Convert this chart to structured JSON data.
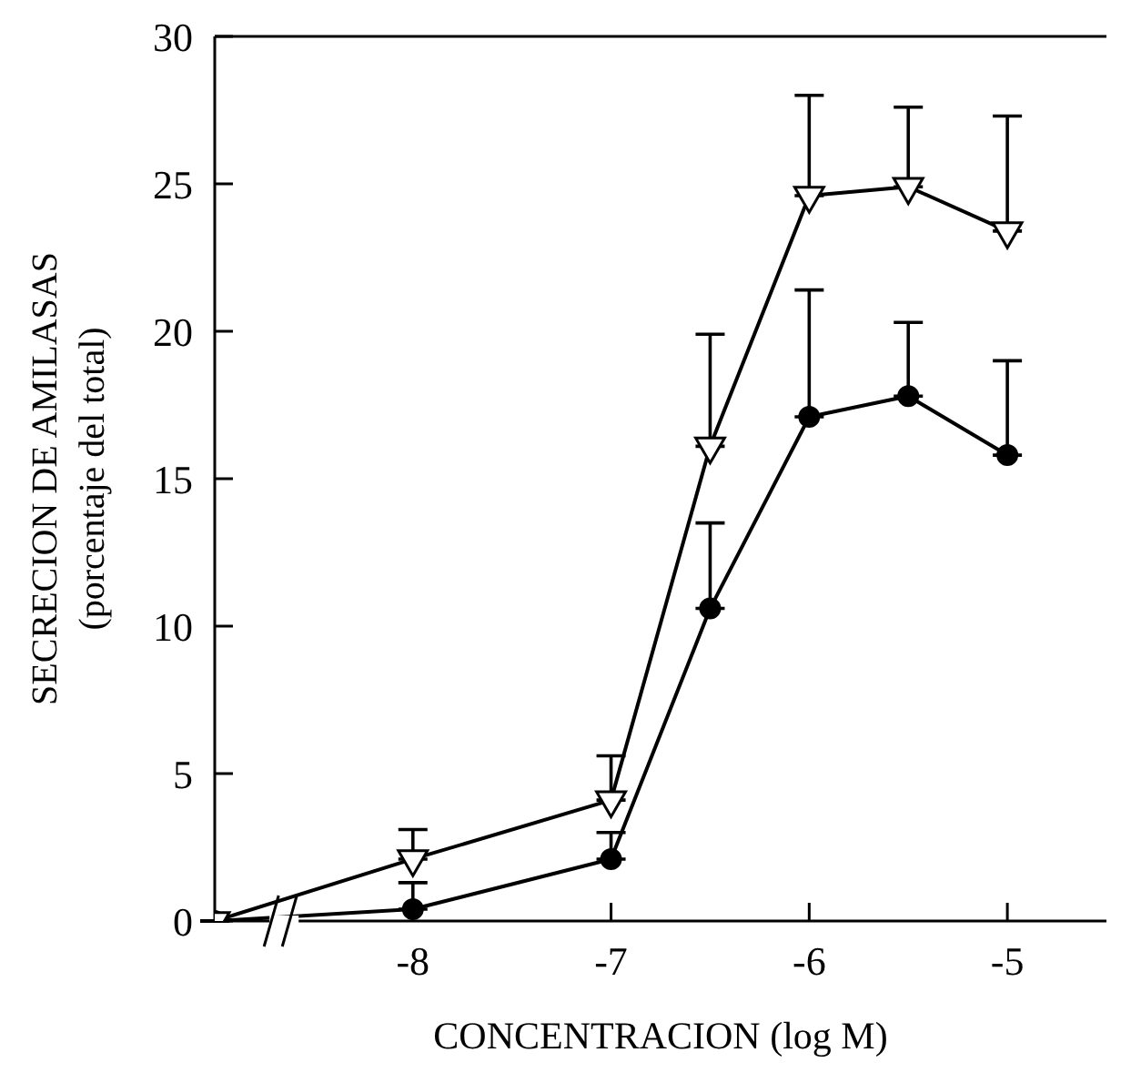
{
  "chart_data": {
    "type": "line",
    "xlabel": "CONCENTRACION (log M)",
    "ylabel": "SECRECION DE AMILASAS\n(porcentaje del total)",
    "x": [
      -9,
      -8,
      -7,
      -6.5,
      -6,
      -5.5,
      -5
    ],
    "series": [
      {
        "color": "#000000",
        "marker": "circle",
        "values": [
          0,
          0.4,
          2.1,
          10.6,
          17.1,
          17.8,
          15.8
        ],
        "errors": [
          null,
          [
            0.4,
            1.3
          ],
          [
            2.1,
            3.0
          ],
          [
            10.6,
            13.5
          ],
          [
            17.1,
            21.4
          ],
          [
            17.8,
            20.3
          ],
          [
            15.8,
            19.0
          ]
        ]
      },
      {
        "color": "#000000",
        "marker": "triangle",
        "values": [
          0,
          2.1,
          4.1,
          16.1,
          24.6,
          24.9,
          23.4
        ],
        "errors": [
          null,
          [
            2.1,
            3.1
          ],
          [
            4.1,
            5.6
          ],
          [
            16.1,
            19.9
          ],
          [
            24.6,
            28.0
          ],
          [
            24.9,
            27.6
          ],
          [
            23.4,
            27.3
          ]
        ]
      }
    ],
    "xlim": [
      -9,
      -4.5
    ],
    "xticks": [
      -8,
      -7,
      -6,
      -5
    ],
    "ylim": [
      0,
      30
    ],
    "yticks": [
      0,
      5,
      10,
      15,
      20,
      25,
      30
    ],
    "grid": false
  }
}
